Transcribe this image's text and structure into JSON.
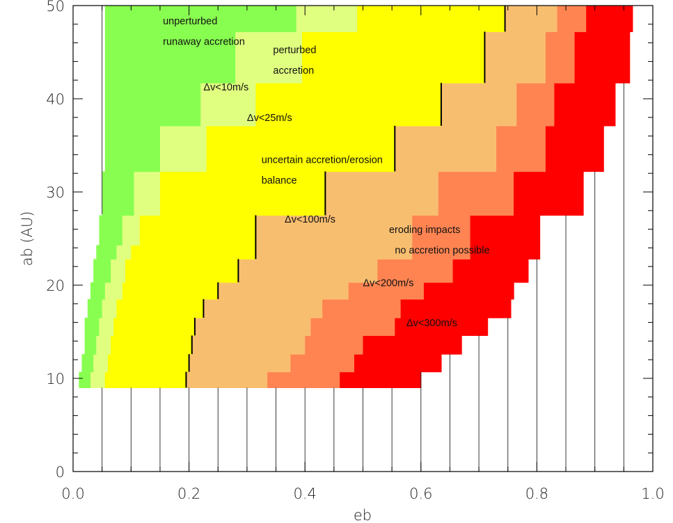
{
  "chart_data": {
    "type": "heatmap",
    "xlabel": "eb",
    "ylabel": "ab (AU)",
    "xlim": [
      0.0,
      1.0
    ],
    "ylim": [
      0,
      50
    ],
    "x_ticks": [
      "0.0",
      "0.2",
      "0.4",
      "0.6",
      "0.8",
      "1.0"
    ],
    "y_ticks": [
      "0",
      "10",
      "20",
      "30",
      "40",
      "50"
    ],
    "x_tick_values": [
      0.0,
      0.2,
      0.4,
      0.6,
      0.8,
      1.0
    ],
    "y_tick_values": [
      0,
      10,
      20,
      30,
      40,
      50
    ],
    "x_minor_step": 0.05,
    "y_minor_step": 2,
    "grid": "vertical lines every 0.05 in eb, drawn on the white region below and right of the colored map",
    "colors": {
      "runaway": "#88FF50",
      "perturbed": "#E0FF80",
      "uncertain": "#FFFF00",
      "eroding_low": "#F8BE70",
      "eroding_mid": "#FF8452",
      "eroding_high": "#FF0000"
    },
    "row_edges_ab": [
      9,
      10.7,
      12.6,
      14.6,
      16.5,
      18.5,
      20.3,
      22.8,
      24.3,
      27.5,
      32.2,
      37.1,
      41.7,
      47.2,
      50
    ],
    "rows": [
      {
        "ab": [
          9,
          10.7
        ],
        "x_start": 0.01,
        "bounds": [
          0.03,
          0.055,
          0.195,
          0.335,
          0.46,
          0.6
        ]
      },
      {
        "ab": [
          10.7,
          12.6
        ],
        "x_start": 0.015,
        "bounds": [
          0.035,
          0.06,
          0.2,
          0.375,
          0.485,
          0.635
        ]
      },
      {
        "ab": [
          12.6,
          14.6
        ],
        "x_start": 0.02,
        "bounds": [
          0.04,
          0.065,
          0.205,
          0.4,
          0.5,
          0.67
        ]
      },
      {
        "ab": [
          14.6,
          16.5
        ],
        "x_start": 0.02,
        "bounds": [
          0.045,
          0.07,
          0.21,
          0.41,
          0.555,
          0.715
        ]
      },
      {
        "ab": [
          16.5,
          18.5
        ],
        "x_start": 0.025,
        "bounds": [
          0.05,
          0.075,
          0.225,
          0.43,
          0.565,
          0.755
        ]
      },
      {
        "ab": [
          18.5,
          20.3
        ],
        "x_start": 0.03,
        "bounds": [
          0.055,
          0.085,
          0.25,
          0.475,
          0.605,
          0.76
        ]
      },
      {
        "ab": [
          20.3,
          22.8
        ],
        "x_start": 0.035,
        "bounds": [
          0.065,
          0.09,
          0.285,
          0.525,
          0.655,
          0.785
        ]
      },
      {
        "ab": [
          22.8,
          24.3
        ],
        "x_start": 0.04,
        "bounds": [
          0.075,
          0.1,
          0.315,
          0.585,
          0.685,
          0.805
        ]
      },
      {
        "ab": [
          24.3,
          27.5
        ],
        "x_start": 0.045,
        "bounds": [
          0.085,
          0.115,
          0.315,
          0.585,
          0.685,
          0.805
        ]
      },
      {
        "ab": [
          27.5,
          32.2
        ],
        "x_start": 0.05,
        "bounds": [
          0.105,
          0.15,
          0.435,
          0.63,
          0.76,
          0.88
        ]
      },
      {
        "ab": [
          32.2,
          37.1
        ],
        "x_start": 0.055,
        "bounds": [
          0.15,
          0.23,
          0.555,
          0.73,
          0.815,
          0.915
        ]
      },
      {
        "ab": [
          37.1,
          41.7
        ],
        "x_start": 0.055,
        "bounds": [
          0.22,
          0.315,
          0.635,
          0.765,
          0.83,
          0.935
        ]
      },
      {
        "ab": [
          41.7,
          47.2
        ],
        "x_start": 0.055,
        "bounds": [
          0.28,
          0.395,
          0.71,
          0.815,
          0.865,
          0.96
        ]
      },
      {
        "ab": [
          47.2,
          50
        ],
        "x_start": 0.055,
        "bounds": [
          0.385,
          0.49,
          0.745,
          0.835,
          0.885,
          0.965
        ]
      }
    ],
    "bold_boundaries": [
      {
        "x": 0.195,
        "ab": [
          9,
          10.7
        ]
      },
      {
        "x": 0.2,
        "ab": [
          10.7,
          12.6
        ]
      },
      {
        "x": 0.205,
        "ab": [
          12.6,
          14.6
        ]
      },
      {
        "x": 0.21,
        "ab": [
          14.6,
          16.5
        ]
      },
      {
        "x": 0.225,
        "ab": [
          16.5,
          18.5
        ]
      },
      {
        "x": 0.25,
        "ab": [
          18.5,
          20.3
        ]
      },
      {
        "x": 0.285,
        "ab": [
          20.3,
          22.8
        ]
      },
      {
        "x": 0.315,
        "ab": [
          22.8,
          27.5
        ]
      },
      {
        "x": 0.435,
        "ab": [
          27.5,
          32.2
        ]
      },
      {
        "x": 0.555,
        "ab": [
          32.2,
          37.1
        ]
      },
      {
        "x": 0.635,
        "ab": [
          37.1,
          41.7
        ]
      },
      {
        "x": 0.71,
        "ab": [
          41.7,
          47.2
        ]
      },
      {
        "x": 0.745,
        "ab": [
          47.2,
          50
        ]
      }
    ],
    "annotations": [
      {
        "text": "unperturbed",
        "x": 0.155,
        "y": 48
      },
      {
        "text": "runaway accretion",
        "x": 0.155,
        "y": 45.8
      },
      {
        "text": "perturbed",
        "x": 0.345,
        "y": 44.9
      },
      {
        "text": "accretion",
        "x": 0.345,
        "y": 42.7
      },
      {
        "text": "Δv<10m/s",
        "x": 0.225,
        "y": 40.9
      },
      {
        "text": "Δv<25m/s",
        "x": 0.3,
        "y": 37.6
      },
      {
        "text": "uncertain accretion/erosion",
        "x": 0.325,
        "y": 33.1
      },
      {
        "text": "balance",
        "x": 0.325,
        "y": 30.9
      },
      {
        "text": "Δv<100m/s",
        "x": 0.365,
        "y": 26.7
      },
      {
        "text": "eroding impacts",
        "x": 0.545,
        "y": 25.6
      },
      {
        "text": "no accretion possible",
        "x": 0.555,
        "y": 23.4
      },
      {
        "text": "Δv<200m/s",
        "x": 0.5,
        "y": 19.9
      },
      {
        "text": "Δv<300m/s",
        "x": 0.575,
        "y": 15.6
      }
    ]
  }
}
